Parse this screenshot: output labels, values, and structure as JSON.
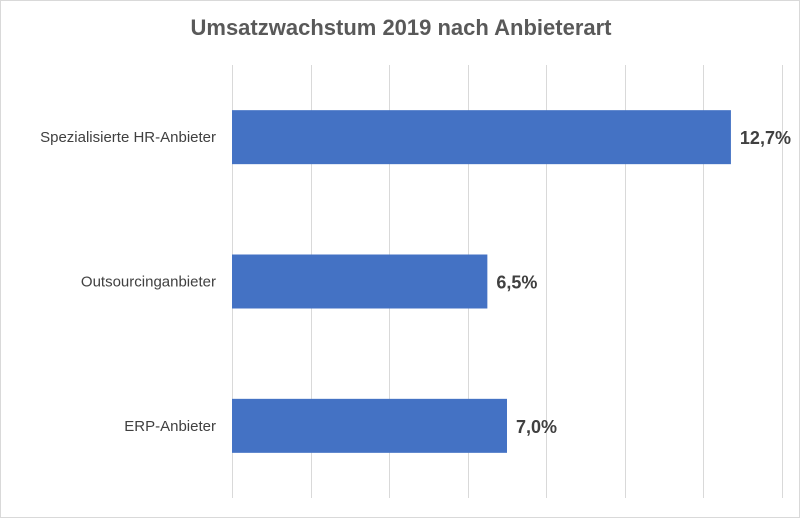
{
  "chart_data": {
    "type": "bar",
    "orientation": "horizontal",
    "title": "Umsatzwachstum 2019 nach Anbieterart",
    "xlabel": "",
    "ylabel": "",
    "categories": [
      "Spezialisierte HR-Anbieter",
      "Outsourcinganbieter",
      "ERP-Anbieter"
    ],
    "values": [
      12.7,
      6.5,
      7.0
    ],
    "data_labels": [
      "12,7%",
      "6,5%",
      "7,0%"
    ],
    "xlim": [
      0,
      14
    ],
    "grid": true,
    "legend": "none",
    "colors": {
      "bar": "#4472C4",
      "grid": "#D9D9D9",
      "text": "#404040",
      "title": "#595959"
    }
  }
}
